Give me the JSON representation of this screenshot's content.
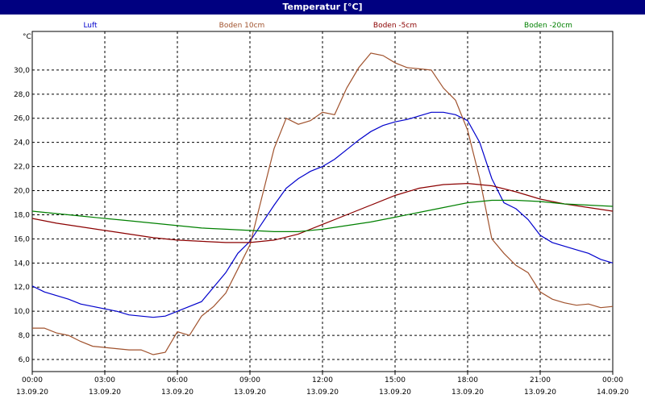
{
  "window": {
    "title": "Temperatur [°C]"
  },
  "chart_data": {
    "type": "line",
    "title": "Temperatur [°C]",
    "ylabel": "°C",
    "xlabel": "",
    "ylim": [
      5.0,
      33.2
    ],
    "xlim": [
      0,
      24
    ],
    "yticks": [
      "6,0",
      "8,0",
      "10,0",
      "12,0",
      "14,0",
      "16,0",
      "18,0",
      "20,0",
      "22,0",
      "24,0",
      "26,0",
      "28,0",
      "30,0"
    ],
    "ytick_values": [
      6,
      8,
      10,
      12,
      14,
      16,
      18,
      20,
      22,
      24,
      26,
      28,
      30
    ],
    "xticks": [
      {
        "time": "00:00",
        "date": "13.09.20"
      },
      {
        "time": "03:00",
        "date": "13.09.20"
      },
      {
        "time": "06:00",
        "date": "13.09.20"
      },
      {
        "time": "09:00",
        "date": "13.09.20"
      },
      {
        "time": "12:00",
        "date": "13.09.20"
      },
      {
        "time": "15:00",
        "date": "13.09.20"
      },
      {
        "time": "18:00",
        "date": "13.09.20"
      },
      {
        "time": "21:00",
        "date": "13.09.20"
      },
      {
        "time": "00:00",
        "date": "14.09.20"
      }
    ],
    "xtick_hours": [
      0,
      3,
      6,
      9,
      12,
      15,
      18,
      21,
      24
    ],
    "grid": true,
    "legend_position": "top",
    "series": [
      {
        "name": "Luft",
        "color": "#0000cc",
        "x": [
          0,
          0.5,
          1,
          1.5,
          2,
          2.5,
          3,
          3.5,
          4,
          4.5,
          5,
          5.5,
          6,
          6.5,
          7,
          7.5,
          8,
          8.5,
          9,
          9.5,
          10,
          10.5,
          11,
          11.5,
          12,
          12.5,
          13,
          13.5,
          14,
          14.5,
          15,
          15.5,
          16,
          16.5,
          17,
          17.5,
          18,
          18.5,
          19,
          19.5,
          20,
          20.5,
          21,
          21.5,
          22,
          22.5,
          23,
          23.5,
          24
        ],
        "y": [
          12.1,
          11.6,
          11.3,
          11.0,
          10.6,
          10.4,
          10.2,
          10.0,
          9.7,
          9.6,
          9.5,
          9.6,
          10.0,
          10.4,
          10.8,
          12.0,
          13.2,
          14.8,
          15.8,
          17.3,
          18.8,
          20.2,
          21.0,
          21.6,
          22.0,
          22.6,
          23.4,
          24.2,
          24.9,
          25.4,
          25.7,
          25.9,
          26.2,
          26.5,
          26.5,
          26.3,
          25.8,
          24.0,
          21.0,
          19.0,
          18.5,
          17.6,
          16.3,
          15.7,
          15.4,
          15.1,
          14.8,
          14.3,
          14.0
        ]
      },
      {
        "name": "Boden 10cm",
        "color": "#a0522d",
        "x": [
          0,
          0.5,
          1,
          1.5,
          2,
          2.5,
          3,
          3.5,
          4,
          4.5,
          5,
          5.5,
          6,
          6.5,
          7,
          7.5,
          8,
          8.5,
          9,
          9.5,
          10,
          10.5,
          11,
          11.5,
          12,
          12.5,
          13,
          13.5,
          14,
          14.5,
          15,
          15.5,
          16,
          16.5,
          17,
          17.5,
          18,
          18.5,
          19,
          19.5,
          20,
          20.5,
          21,
          21.5,
          22,
          22.5,
          23,
          23.5,
          24
        ],
        "y": [
          8.6,
          8.6,
          8.2,
          8.0,
          7.5,
          7.1,
          7.0,
          6.9,
          6.8,
          6.8,
          6.4,
          6.6,
          8.3,
          8.0,
          9.6,
          10.4,
          11.5,
          13.5,
          15.5,
          19.5,
          23.5,
          26.0,
          25.5,
          25.8,
          26.5,
          26.3,
          28.5,
          30.2,
          31.4,
          31.2,
          30.6,
          30.2,
          30.1,
          30.0,
          28.5,
          27.5,
          25.0,
          21.0,
          16.0,
          14.8,
          13.8,
          13.2,
          11.6,
          11.0,
          10.7,
          10.5,
          10.6,
          10.3,
          10.4
        ]
      },
      {
        "name": "Boden -5cm",
        "color": "#8b0000",
        "x": [
          0,
          1,
          2,
          3,
          4,
          5,
          6,
          7,
          8,
          9,
          10,
          11,
          12,
          13,
          14,
          15,
          16,
          17,
          18,
          19,
          20,
          21,
          22,
          23,
          24
        ],
        "y": [
          17.7,
          17.3,
          17.0,
          16.7,
          16.4,
          16.1,
          15.9,
          15.8,
          15.7,
          15.7,
          15.9,
          16.4,
          17.2,
          18.0,
          18.8,
          19.6,
          20.2,
          20.5,
          20.6,
          20.4,
          19.9,
          19.3,
          18.9,
          18.6,
          18.3
        ]
      },
      {
        "name": "Boden -20cm",
        "color": "#008000",
        "x": [
          0,
          1,
          2,
          3,
          4,
          5,
          6,
          7,
          8,
          9,
          10,
          11,
          12,
          13,
          14,
          15,
          16,
          17,
          18,
          19,
          20,
          21,
          22,
          23,
          24
        ],
        "y": [
          18.3,
          18.1,
          17.9,
          17.7,
          17.5,
          17.3,
          17.1,
          16.9,
          16.8,
          16.7,
          16.6,
          16.6,
          16.8,
          17.1,
          17.4,
          17.8,
          18.2,
          18.6,
          19.0,
          19.2,
          19.2,
          19.1,
          18.9,
          18.8,
          18.7
        ]
      }
    ]
  }
}
